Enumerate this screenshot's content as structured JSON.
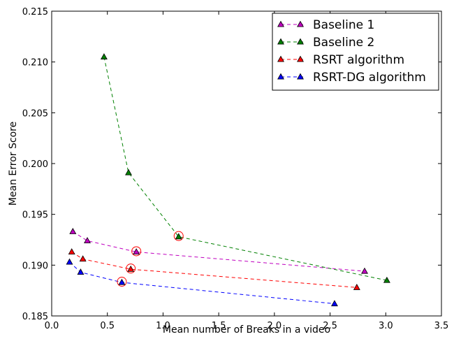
{
  "chart_data": {
    "type": "line",
    "xlabel": "Mean number of Breaks in a video",
    "ylabel": "Mean Error Score",
    "xlim": [
      0.0,
      3.5
    ],
    "ylim": [
      0.185,
      0.215
    ],
    "xticks": [
      "0.0",
      "0.5",
      "1.0",
      "1.5",
      "2.0",
      "2.5",
      "3.0",
      "3.5"
    ],
    "yticks": [
      "0.185",
      "0.190",
      "0.195",
      "0.200",
      "0.205",
      "0.210",
      "0.215"
    ],
    "grid": false,
    "legend_position": "top-right",
    "series": [
      {
        "name": "Baseline 1",
        "color": "#bf00bf",
        "x": [
          0.19,
          0.32,
          0.76,
          2.81
        ],
        "y": [
          0.1933,
          0.1924,
          0.1913,
          0.1894
        ],
        "highlighted_index": 2
      },
      {
        "name": "Baseline 2",
        "color": "#008000",
        "x": [
          0.47,
          0.69,
          1.14,
          3.01
        ],
        "y": [
          0.2105,
          0.1991,
          0.1928,
          0.1885
        ],
        "highlighted_index": 2
      },
      {
        "name": "RSRT algorithm",
        "color": "#ff0000",
        "x": [
          0.18,
          0.28,
          0.71,
          2.74
        ],
        "y": [
          0.1913,
          0.1906,
          0.1896,
          0.1878
        ],
        "highlighted_index": 2
      },
      {
        "name": "RSRT-DG algorithm",
        "color": "#0000ff",
        "x": [
          0.16,
          0.26,
          0.63,
          2.54
        ],
        "y": [
          0.1903,
          0.1893,
          0.1883,
          0.1862
        ],
        "highlighted_index": 2
      }
    ]
  }
}
